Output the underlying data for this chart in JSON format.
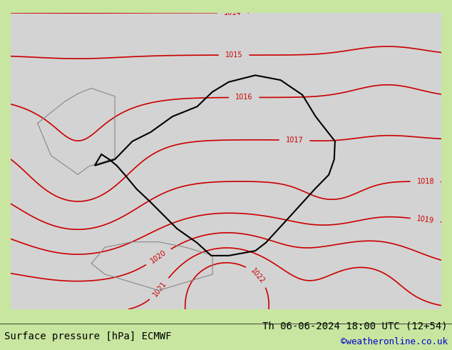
{
  "title_left": "Surface pressure [hPa] ECMWF",
  "title_right": "Th 06-06-2024 18:00 UTC (12+54)",
  "credit": "©weatheronline.co.uk",
  "bg_map_color": "#c8e6a0",
  "bg_sea_color": "#d3d3d3",
  "border_color": "#000000",
  "contour_color": "#cc0000",
  "contour_label_color": "#cc0000",
  "label_color_left": "#000000",
  "label_color_right": "#000000",
  "credit_color": "#0000cc",
  "fig_width": 6.34,
  "fig_height": 4.9,
  "dpi": 100,
  "bottom_bar_color": "#c8e6a0",
  "font_size_bottom": 10,
  "font_size_credit": 9
}
